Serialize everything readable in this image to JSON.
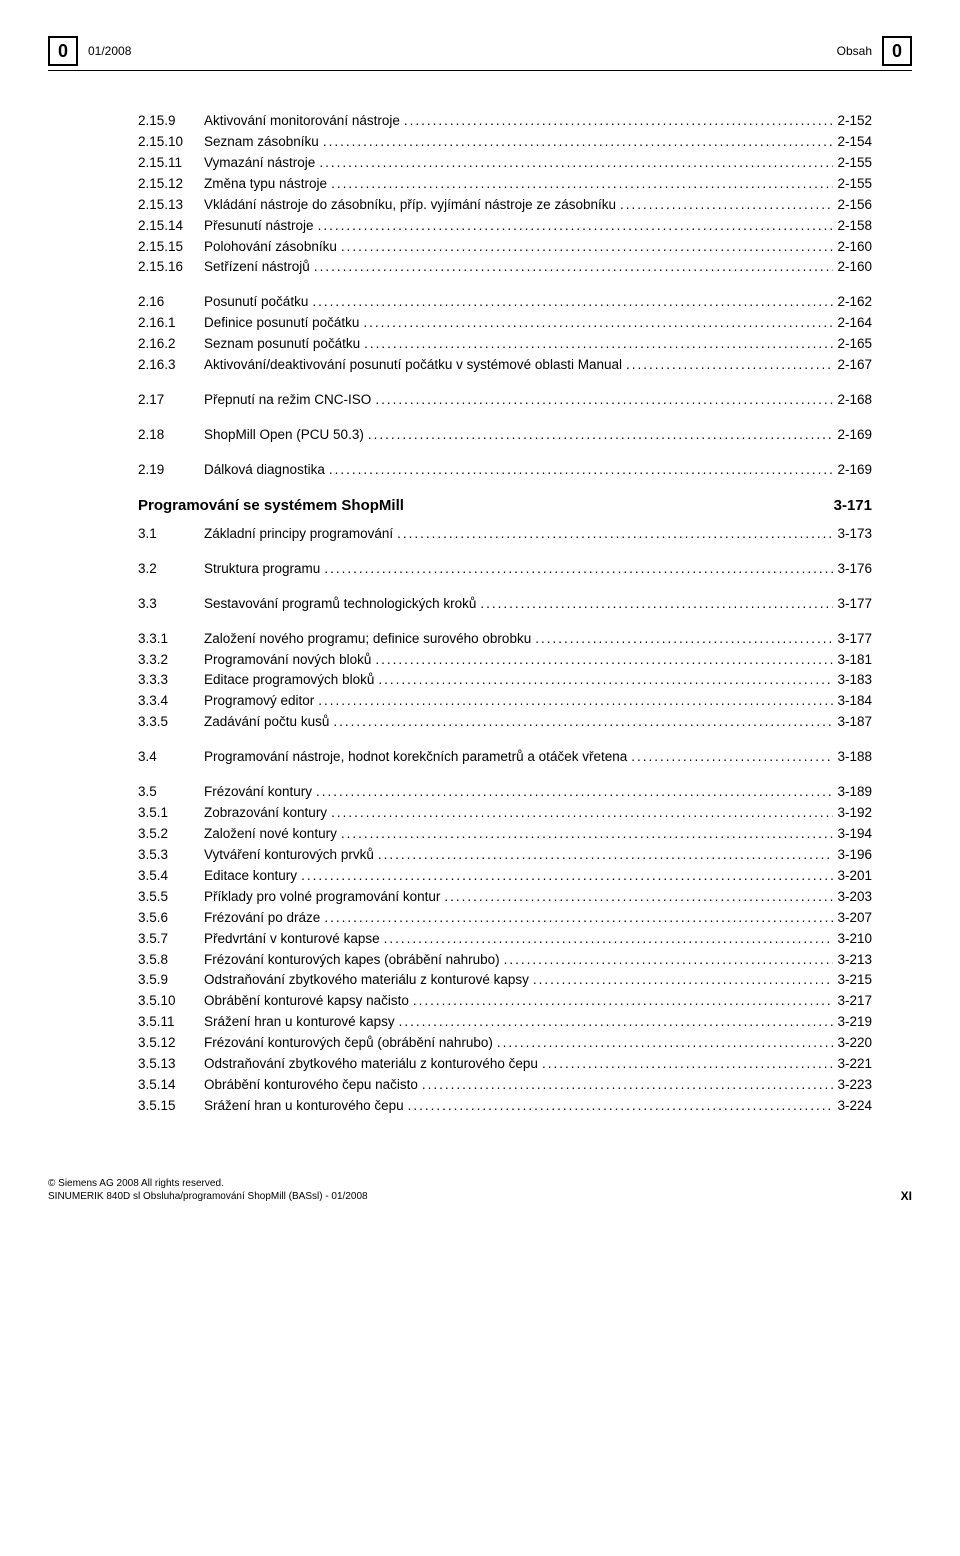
{
  "header": {
    "left_box": "0",
    "date": "01/2008",
    "section": "Obsah",
    "right_box": "0"
  },
  "group": {
    "title": "Programování se systémem ShopMill",
    "page": "3-171"
  },
  "lines": [
    {
      "n": "2.15.9",
      "t": "Aktivování monitorování nástroje",
      "p": "2-152"
    },
    {
      "n": "2.15.10",
      "t": "Seznam zásobníku",
      "p": "2-154"
    },
    {
      "n": "2.15.11",
      "t": "Vymazání nástroje",
      "p": "2-155"
    },
    {
      "n": "2.15.12",
      "t": "Změna typu nástroje",
      "p": "2-155"
    },
    {
      "n": "2.15.13",
      "t": "Vkládání nástroje do zásobníku, příp. vyjímání nástroje ze zásobníku",
      "p": "2-156"
    },
    {
      "n": "2.15.14",
      "t": "Přesunutí nástroje",
      "p": "2-158"
    },
    {
      "n": "2.15.15",
      "t": "Polohování zásobníku",
      "p": "2-160"
    },
    {
      "n": "2.15.16",
      "t": "Setřízení nástrojů",
      "p": "2-160"
    },
    {
      "gap": "md"
    },
    {
      "n": "2.16",
      "t": "Posunutí počátku",
      "p": "2-162"
    },
    {
      "n": "2.16.1",
      "t": "Definice posunutí počátku",
      "p": "2-164"
    },
    {
      "n": "2.16.2",
      "t": "Seznam posunutí počátku",
      "p": "2-165"
    },
    {
      "n": "2.16.3",
      "t": "Aktivování/deaktivování posunutí počátku v systémové oblasti Manual",
      "p": "2-167"
    },
    {
      "gap": "md"
    },
    {
      "n": "2.17",
      "t": "Přepnutí na režim CNC-ISO",
      "p": "2-168"
    },
    {
      "gap": "md"
    },
    {
      "n": "2.18",
      "t": "ShopMill Open (PCU 50.3)",
      "p": "2-169"
    },
    {
      "gap": "md"
    },
    {
      "n": "2.19",
      "t": "Dálková diagnostika",
      "p": "2-169"
    },
    {
      "group": true
    },
    {
      "n": "3.1",
      "t": "Základní principy programování",
      "p": "3-173"
    },
    {
      "gap": "md"
    },
    {
      "n": "3.2",
      "t": "Struktura programu",
      "p": "3-176"
    },
    {
      "gap": "md"
    },
    {
      "n": "3.3",
      "t": "Sestavování programů technologických kroků",
      "p": "3-177"
    },
    {
      "gap": "md"
    },
    {
      "n": "3.3.1",
      "t": "Založení nového programu; definice surového obrobku",
      "p": "3-177"
    },
    {
      "n": "3.3.2",
      "t": "Programování nových bloků",
      "p": "3-181"
    },
    {
      "n": "3.3.3",
      "t": "Editace programových bloků",
      "p": "3-183"
    },
    {
      "n": "3.3.4",
      "t": "Programový editor",
      "p": "3-184"
    },
    {
      "n": "3.3.5",
      "t": "Zadávání počtu kusů",
      "p": "3-187"
    },
    {
      "gap": "md"
    },
    {
      "n": "3.4",
      "t": "Programování nástroje, hodnot korekčních parametrů a otáček vřetena",
      "p": "3-188"
    },
    {
      "gap": "md"
    },
    {
      "n": "3.5",
      "t": "Frézování kontury",
      "p": "3-189"
    },
    {
      "n": "3.5.1",
      "t": "Zobrazování kontury",
      "p": "3-192"
    },
    {
      "n": "3.5.2",
      "t": "Založení nové kontury",
      "p": "3-194"
    },
    {
      "n": "3.5.3",
      "t": "Vytváření konturových prvků",
      "p": "3-196"
    },
    {
      "n": "3.5.4",
      "t": "Editace kontury",
      "p": "3-201"
    },
    {
      "n": "3.5.5",
      "t": "Příklady pro volné programování kontur",
      "p": "3-203"
    },
    {
      "n": "3.5.6",
      "t": "Frézování po dráze",
      "p": "3-207"
    },
    {
      "n": "3.5.7",
      "t": "Předvrtání v konturové kapse",
      "p": "3-210"
    },
    {
      "n": "3.5.8",
      "t": "Frézování konturových kapes (obrábění nahrubo)",
      "p": "3-213"
    },
    {
      "n": "3.5.9",
      "t": "Odstraňování zbytkového materiálu z konturové kapsy",
      "p": "3-215"
    },
    {
      "n": "3.5.10",
      "t": "Obrábění konturové kapsy načisto",
      "p": "3-217"
    },
    {
      "n": "3.5.11",
      "t": "Srážení hran u konturové kapsy",
      "p": "3-219"
    },
    {
      "n": "3.5.12",
      "t": "Frézování konturových čepů (obrábění nahrubo)",
      "p": "3-220"
    },
    {
      "n": "3.5.13",
      "t": "Odstraňování zbytkového materiálu z konturového čepu",
      "p": "3-221"
    },
    {
      "n": "3.5.14",
      "t": "Obrábění konturového čepu načisto",
      "p": "3-223"
    },
    {
      "n": "3.5.15",
      "t": "Srážení hran u konturového čepu",
      "p": "3-224"
    }
  ],
  "footer": {
    "copyright": "© Siemens AG 2008 All rights reserved.",
    "docref": "SINUMERIK 840D sl Obsluha/programování ShopMill (BASsl) - 01/2008",
    "page": "XI"
  }
}
